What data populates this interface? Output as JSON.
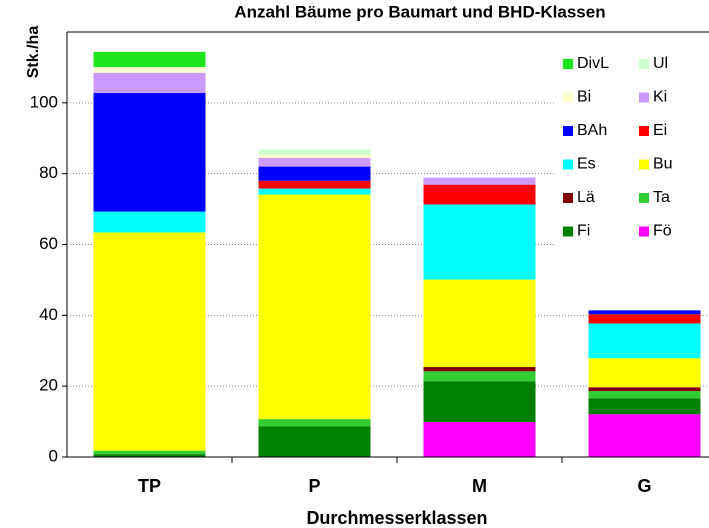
{
  "chart_data": {
    "type": "stacked_bar",
    "title": "Anzahl Bäume pro Baumart und BHD-Klassen",
    "y_label": "Stk./ha",
    "x_label": "Durchmesserklassen",
    "categories": [
      "TP",
      "P",
      "M",
      "G"
    ],
    "ylim": [
      0,
      120
    ],
    "yticks": [
      0,
      20,
      40,
      60,
      80,
      100
    ],
    "grid": true,
    "legend": "upper right",
    "series": [
      {
        "name": "Fö",
        "color": "#ff00ff",
        "values": [
          0,
          0,
          9.9,
          12.1
        ]
      },
      {
        "name": "Fi",
        "color": "#008000",
        "values": [
          0.8,
          8.7,
          11.5,
          4.5
        ]
      },
      {
        "name": "Ta",
        "color": "#33cc33",
        "values": [
          1.0,
          2.0,
          2.8,
          2.0
        ]
      },
      {
        "name": "Lä",
        "color": "#800000",
        "values": [
          0,
          0,
          1.2,
          1.1
        ]
      },
      {
        "name": "Bu",
        "color": "#ffff00",
        "values": [
          61.6,
          63.4,
          24.7,
          8.2
        ]
      },
      {
        "name": "Es",
        "color": "#00ffff",
        "values": [
          5.9,
          1.7,
          21.2,
          9.8
        ]
      },
      {
        "name": "Ei",
        "color": "#ff0000",
        "values": [
          0,
          2.2,
          5.6,
          2.6
        ]
      },
      {
        "name": "BAh",
        "color": "#0000ff",
        "values": [
          33.5,
          4.0,
          0,
          1.1
        ]
      },
      {
        "name": "Ki",
        "color": "#cc99ff",
        "values": [
          5.7,
          2.5,
          2.0,
          0
        ]
      },
      {
        "name": "Bi",
        "color": "#ffffcc",
        "values": [
          1.6,
          0.9,
          0,
          0
        ]
      },
      {
        "name": "Ul",
        "color": "#ccffcc",
        "values": [
          0,
          1.4,
          0,
          0
        ]
      },
      {
        "name": "DivL",
        "color": "#1ee61e",
        "values": [
          4.3,
          0,
          0,
          0
        ]
      }
    ]
  }
}
